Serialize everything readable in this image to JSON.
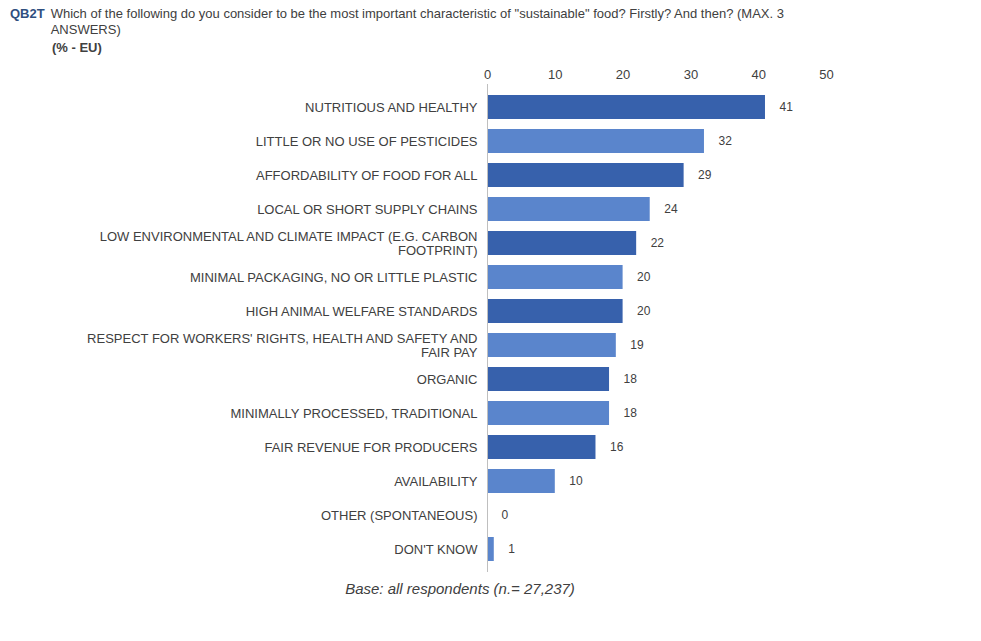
{
  "chart_data": {
    "type": "bar",
    "orientation": "horizontal",
    "title": "QB2T Which of the following do you consider to be the most important characteristic of \"sustainable\" food? Firstly? And then? (MAX. 3 ANSWERS)",
    "subtitle": "(% - EU)",
    "caption": "Base: all respondents (n.= 27,237)",
    "categories": [
      "NUTRITIOUS AND HEALTHY",
      "LITTLE OR NO USE OF PESTICIDES",
      "AFFORDABILITY OF FOOD FOR ALL",
      "LOCAL OR SHORT SUPPLY CHAINS",
      "LOW ENVIRONMENTAL AND CLIMATE IMPACT (E.G. CARBON FOOTPRINT)",
      "MINIMAL PACKAGING, NO OR LITTLE PLASTIC",
      "HIGH ANIMAL WELFARE STANDARDS",
      "RESPECT FOR WORKERS' RIGHTS, HEALTH AND SAFETY AND FAIR PAY",
      "ORGANIC",
      "MINIMALLY PROCESSED, TRADITIONAL",
      "FAIR REVENUE FOR PRODUCERS",
      "AVAILABILITY",
      "OTHER (SPONTANEOUS)",
      "DON'T KNOW"
    ],
    "values": [
      41,
      32,
      29,
      24,
      22,
      20,
      20,
      19,
      18,
      18,
      16,
      10,
      0,
      1
    ],
    "colors": [
      "#3761ac",
      "#5a85cc",
      "#3761ac",
      "#5a85cc",
      "#3761ac",
      "#5a85cc",
      "#3761ac",
      "#5a85cc",
      "#3761ac",
      "#5a85cc",
      "#3761ac",
      "#5a85cc",
      "#3761ac",
      "#5a85cc"
    ],
    "xlim": [
      0,
      50
    ],
    "xticks": [
      0,
      10,
      20,
      30,
      40,
      50
    ],
    "grid": false,
    "data_labels": true
  }
}
